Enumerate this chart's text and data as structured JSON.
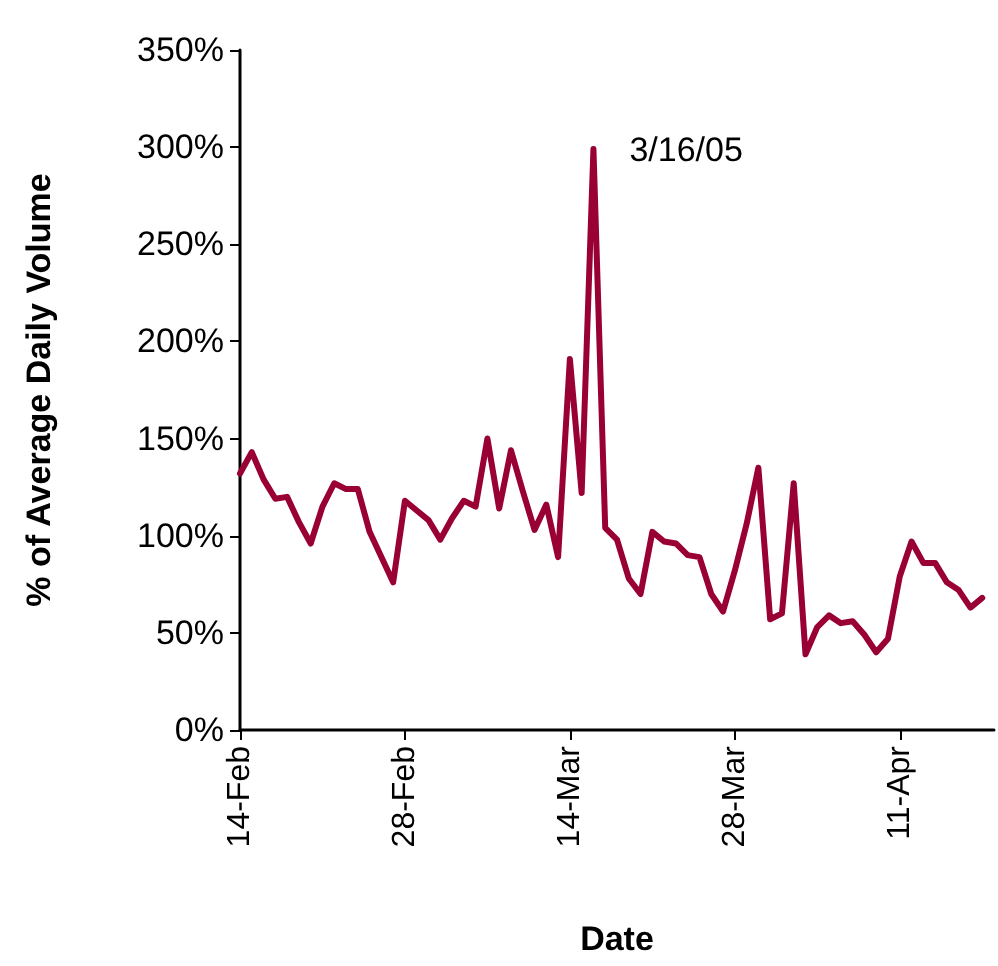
{
  "chart_data": {
    "type": "line",
    "xlabel": "Date",
    "ylabel": "% of Average Daily Volume",
    "x": [
      "--02-14",
      "--02-15",
      "--02-16",
      "--02-17",
      "--02-18",
      "--02-19",
      "--02-20",
      "--02-21",
      "--02-22",
      "--02-23",
      "--02-24",
      "--02-25",
      "--02-26",
      "--02-27",
      "--02-28",
      "--03-01",
      "--03-02",
      "--03-03",
      "--03-04",
      "--03-05",
      "--03-06",
      "--03-07",
      "--03-08",
      "--03-09",
      "--03-10",
      "--03-11",
      "--03-12",
      "--03-13",
      "--03-14",
      "--03-15",
      "--03-16",
      "--03-17",
      "--03-18",
      "--03-19",
      "--03-20",
      "--03-21",
      "--03-22",
      "--03-23",
      "--03-24",
      "--03-25",
      "--03-26",
      "--03-27",
      "--03-28",
      "--03-29",
      "--03-30",
      "--03-31",
      "--04-01",
      "--04-02",
      "--04-03",
      "--04-04",
      "--04-05",
      "--04-06",
      "--04-07",
      "--04-08",
      "--04-09",
      "--04-10",
      "--04-11",
      "--04-12",
      "--04-13",
      "--04-14",
      "--04-15",
      "--04-16",
      "--04-17",
      "--04-18"
    ],
    "series": [
      {
        "color": "#990033",
        "values": [
          132,
          143,
          129,
          119,
          120,
          107,
          96,
          115,
          127,
          124,
          124,
          102,
          89,
          76,
          118,
          113,
          108,
          98,
          109,
          118,
          115,
          150,
          114,
          144,
          123,
          103,
          116,
          89,
          191,
          122,
          299,
          104,
          98,
          78,
          70,
          102,
          97,
          96,
          90,
          89,
          70,
          61,
          82,
          106,
          135,
          57,
          60,
          127,
          39,
          53,
          59,
          55,
          56,
          49,
          40,
          47,
          79,
          97,
          86,
          86,
          76,
          72,
          63,
          68
        ]
      }
    ],
    "xlim": [
      "--02-14",
      "--04-19"
    ],
    "xticks": [
      {
        "value": "--02-14",
        "label": "14-Feb"
      },
      {
        "value": "--02-28",
        "label": "28-Feb"
      },
      {
        "value": "--03-14",
        "label": "14-Mar"
      },
      {
        "value": "--03-28",
        "label": "28-Mar"
      },
      {
        "value": "--04-11",
        "label": "11-Apr"
      }
    ],
    "ylim": [
      0,
      350
    ],
    "yticks": [
      {
        "value": 0,
        "label": "0%"
      },
      {
        "value": 50,
        "label": "50%"
      },
      {
        "value": 100,
        "label": "100%"
      },
      {
        "value": 150,
        "label": "150%"
      },
      {
        "value": 200,
        "label": "200%"
      },
      {
        "value": 250,
        "label": "250%"
      },
      {
        "value": 300,
        "label": "300%"
      },
      {
        "value": 350,
        "label": "350%"
      }
    ],
    "annotations": [
      {
        "text": "3/16/05",
        "x": "--03-16",
        "y": 299
      }
    ],
    "grid": false,
    "marker": "none",
    "line_style": "solid"
  }
}
